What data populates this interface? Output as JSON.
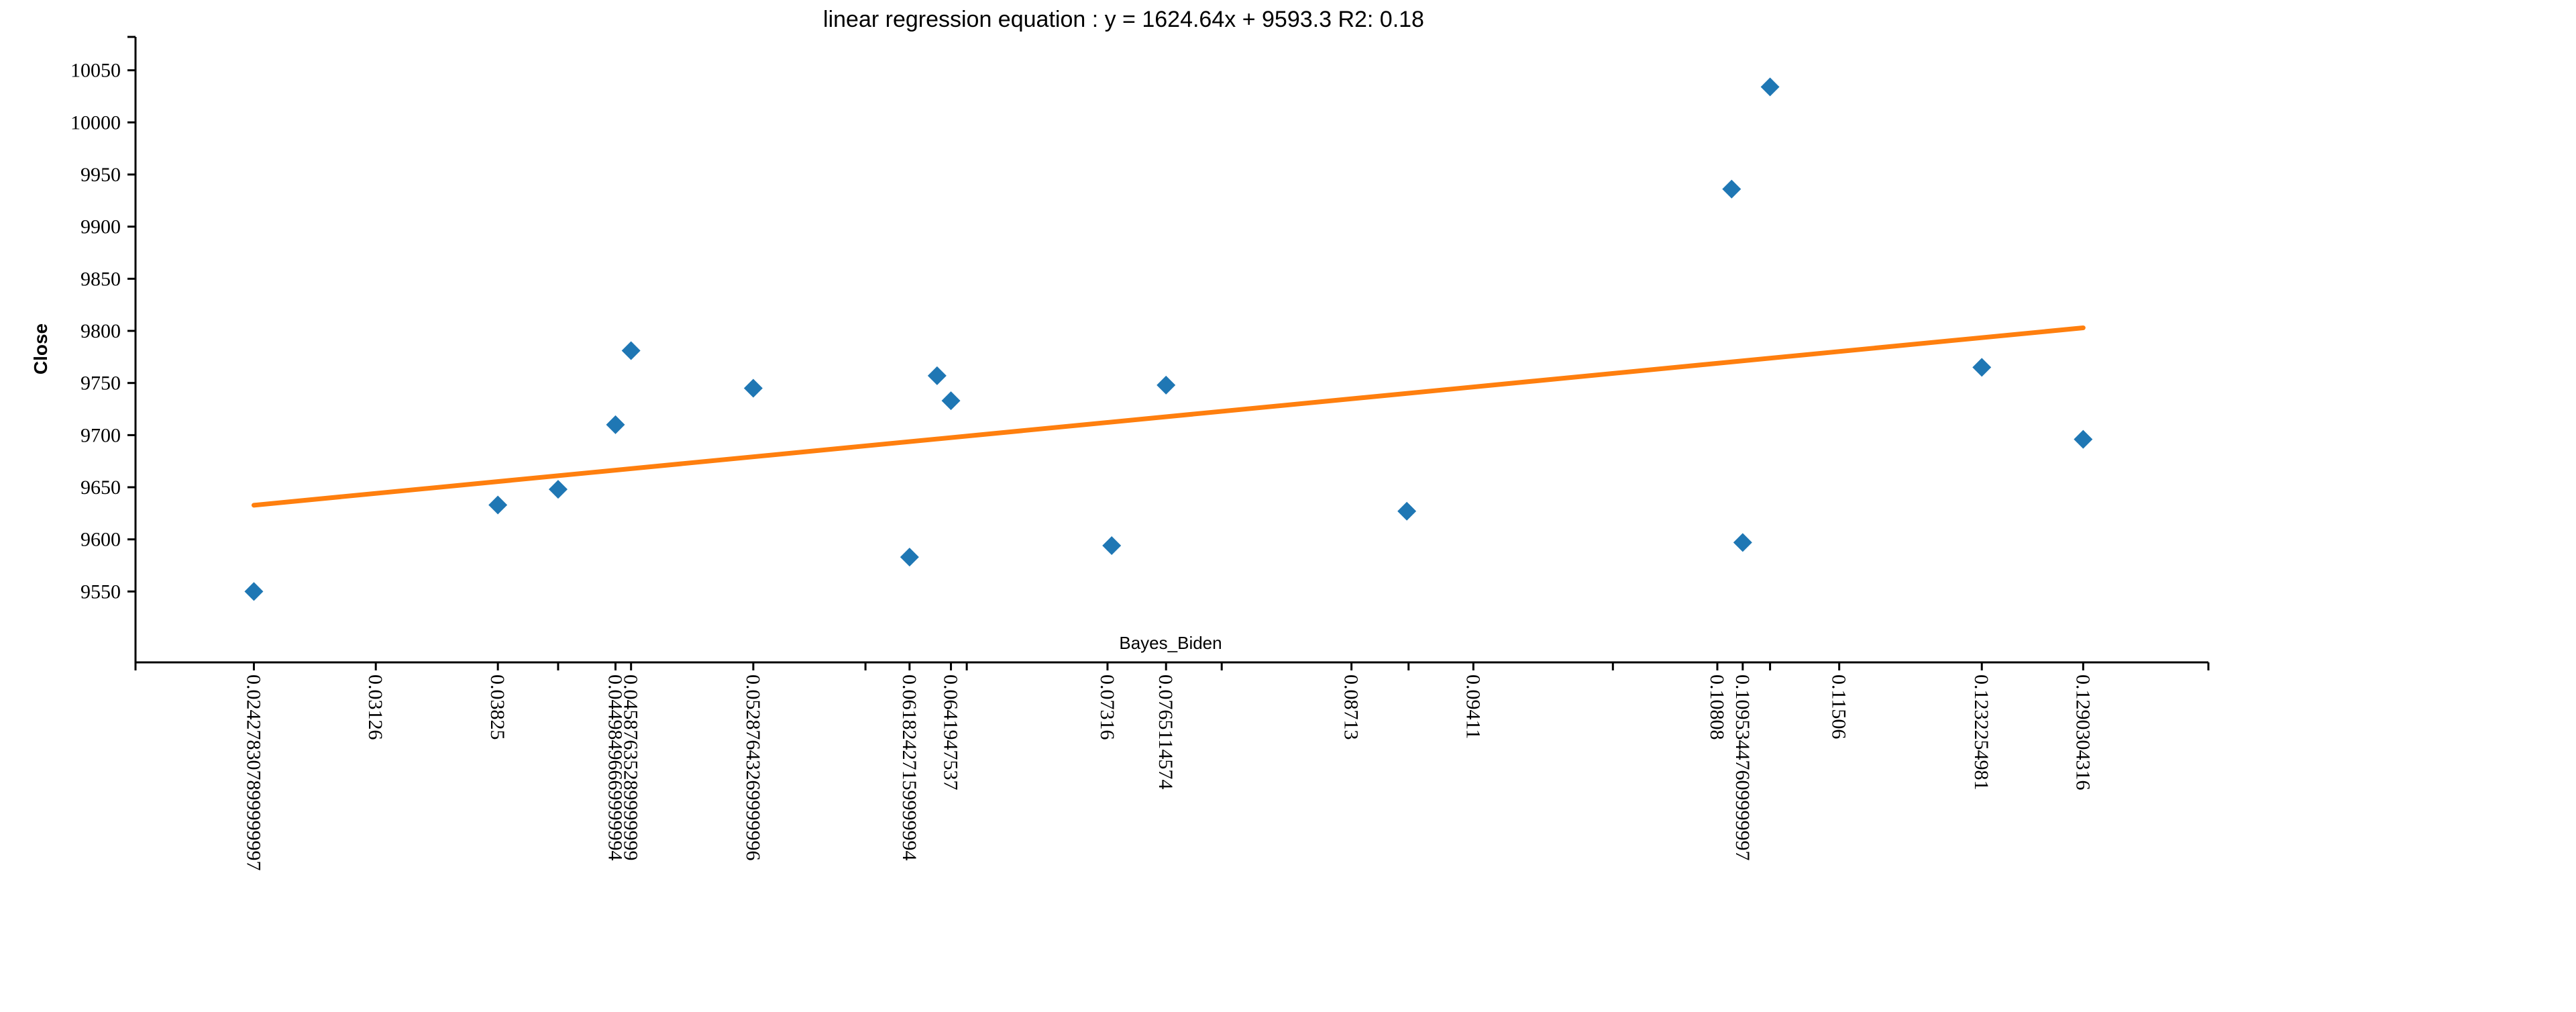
{
  "chart_data": {
    "type": "scatter",
    "title": "linear regression equation : y = 1624.64x + 9593.3 R2: 0.18",
    "xlabel": "Bayes_Biden",
    "ylabel": "Close",
    "xlim": [
      0.0175,
      0.1362
    ],
    "ylim": [
      9482,
      10082
    ],
    "yticks": [
      9550,
      9600,
      9650,
      9700,
      9750,
      9800,
      9850,
      9900,
      9950,
      10000,
      10050
    ],
    "xticks": [
      {
        "value": 0.024278307899999997,
        "label": "0.024278307899999997"
      },
      {
        "value": 0.03126,
        "label": "0.03126"
      },
      {
        "value": 0.03825,
        "label": "0.03825"
      },
      {
        "value": 0.04498496669999994,
        "label": "0.04498496669999994"
      },
      {
        "value": 0.04587635289999999,
        "label": "0.04587635289999999"
      },
      {
        "value": 0.05287643269999996,
        "label": "0.05287643269999996"
      },
      {
        "value": 0.06182427159999994,
        "label": "0.06182427159999994"
      },
      {
        "value": 0.0641947537,
        "label": "0.0641947537"
      },
      {
        "value": 0.07316,
        "label": "0.07316"
      },
      {
        "value": 0.0765114574,
        "label": "0.0765114574"
      },
      {
        "value": 0.08713,
        "label": "0.08713"
      },
      {
        "value": 0.09411,
        "label": "0.09411"
      },
      {
        "value": 0.10808,
        "label": "0.10808"
      },
      {
        "value": 0.10953447609999997,
        "label": "0.10953447609999997"
      },
      {
        "value": 0.11506,
        "label": "0.11506"
      },
      {
        "value": 0.1232254981,
        "label": "0.1232254981"
      },
      {
        "value": 0.1290304316,
        "label": "0.1290304316"
      }
    ],
    "minor_ticks": [
      0.0175,
      0.0417,
      0.0593,
      0.0651,
      0.0797,
      0.0904,
      0.1021,
      0.1111,
      0.1362
    ],
    "points": [
      {
        "x": 0.024278,
        "y": 9550
      },
      {
        "x": 0.03825,
        "y": 9633
      },
      {
        "x": 0.0417,
        "y": 9648
      },
      {
        "x": 0.044985,
        "y": 9710
      },
      {
        "x": 0.045876,
        "y": 9781
      },
      {
        "x": 0.052876,
        "y": 9745
      },
      {
        "x": 0.061824,
        "y": 9583
      },
      {
        "x": 0.0634,
        "y": 9757
      },
      {
        "x": 0.064195,
        "y": 9733
      },
      {
        "x": 0.0734,
        "y": 9594
      },
      {
        "x": 0.076511,
        "y": 9748
      },
      {
        "x": 0.0903,
        "y": 9627
      },
      {
        "x": 0.1089,
        "y": 9936
      },
      {
        "x": 0.109534,
        "y": 9597
      },
      {
        "x": 0.1111,
        "y": 10034
      },
      {
        "x": 0.123225,
        "y": 9765
      },
      {
        "x": 0.12903,
        "y": 9696
      }
    ],
    "regression": {
      "slope": 1624.64,
      "intercept": 9593.3,
      "x_range": [
        0.024278,
        0.12903
      ]
    },
    "colors": {
      "points": "#1f77b4",
      "line": "#ff7f0e"
    }
  }
}
